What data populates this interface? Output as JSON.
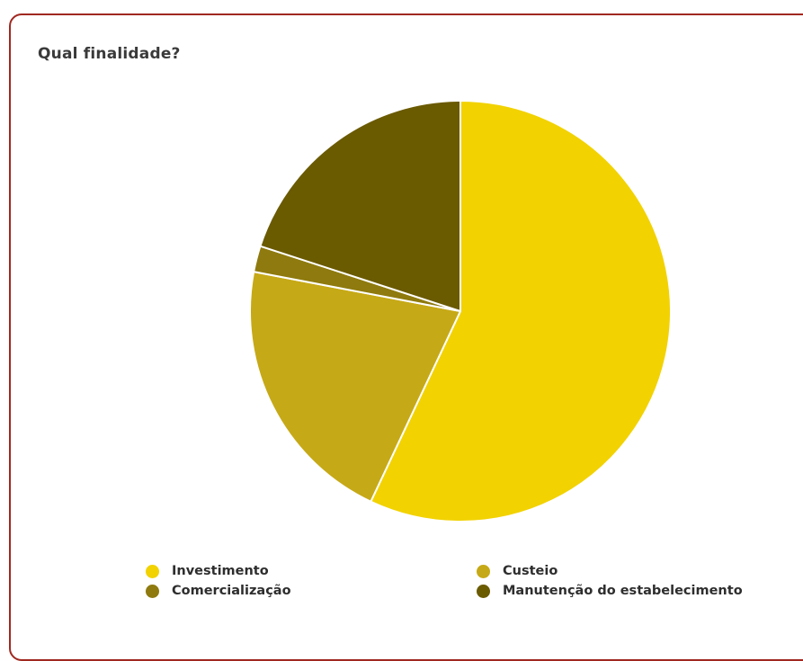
{
  "chart_data": {
    "type": "pie",
    "title": "Qual finalidade?",
    "categories": [
      "Investimento",
      "Custeio",
      "Comercialização",
      "Manutenção do estabelecimento"
    ],
    "values": [
      57,
      21,
      2,
      20
    ],
    "colors": [
      "#f2d200",
      "#c6a916",
      "#8e7a0e",
      "#6a5a00"
    ],
    "legend_position": "bottom"
  }
}
